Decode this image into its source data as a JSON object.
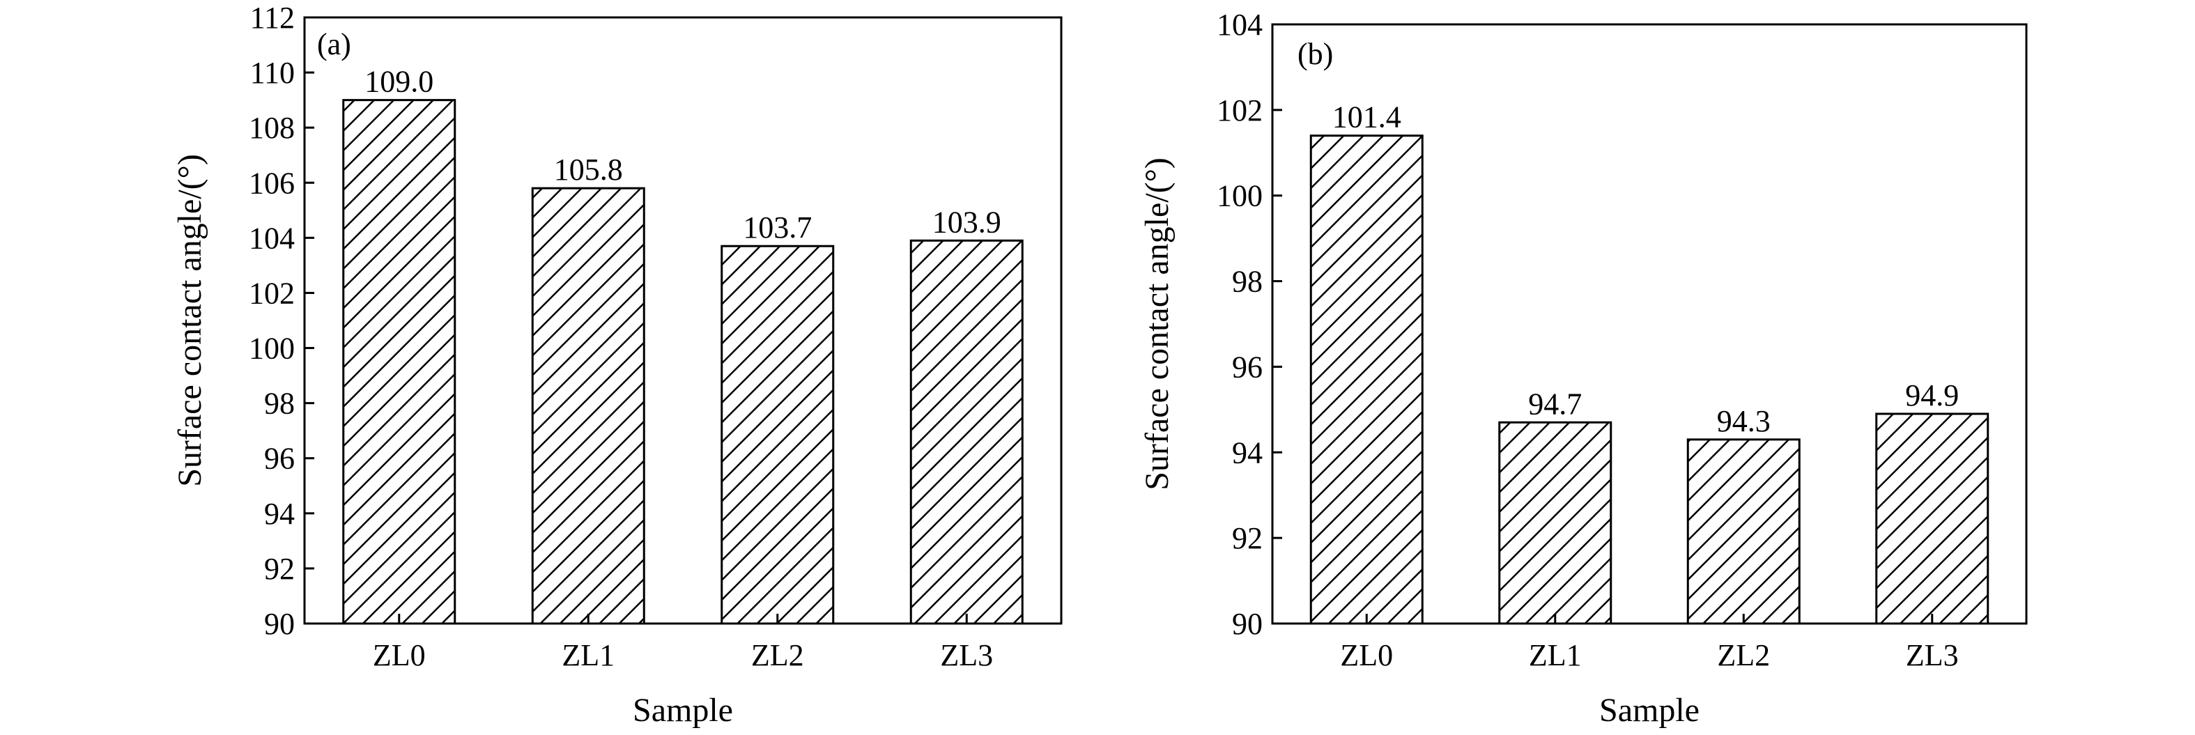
{
  "chart_data": [
    {
      "type": "bar",
      "panel_label": "(a)",
      "categories": [
        "ZL0",
        "ZL1",
        "ZL2",
        "ZL3"
      ],
      "values": [
        109.0,
        105.8,
        103.7,
        103.9
      ],
      "value_labels": [
        "109.0",
        "105.8",
        "103.7",
        "103.9"
      ],
      "xlabel": "Sample",
      "ylabel": "Surface contact angle/(°)",
      "ylim": [
        90,
        112
      ],
      "yticks": [
        "90",
        "92",
        "94",
        "96",
        "98",
        "100",
        "102",
        "104",
        "106",
        "108",
        "110",
        "112"
      ],
      "bar_fill": "diagonal-hatch",
      "grid": false
    },
    {
      "type": "bar",
      "panel_label": "(b)",
      "categories": [
        "ZL0",
        "ZL1",
        "ZL2",
        "ZL3"
      ],
      "values": [
        101.4,
        94.7,
        94.3,
        94.9
      ],
      "value_labels": [
        "101.4",
        "94.7",
        "94.3",
        "94.9"
      ],
      "xlabel": "Sample",
      "ylabel": "Surface contact angle/(°)",
      "ylim": [
        90,
        104
      ],
      "yticks": [
        "90",
        "92",
        "94",
        "96",
        "98",
        "100",
        "102",
        "104"
      ],
      "bar_fill": "diagonal-hatch",
      "grid": false
    }
  ]
}
